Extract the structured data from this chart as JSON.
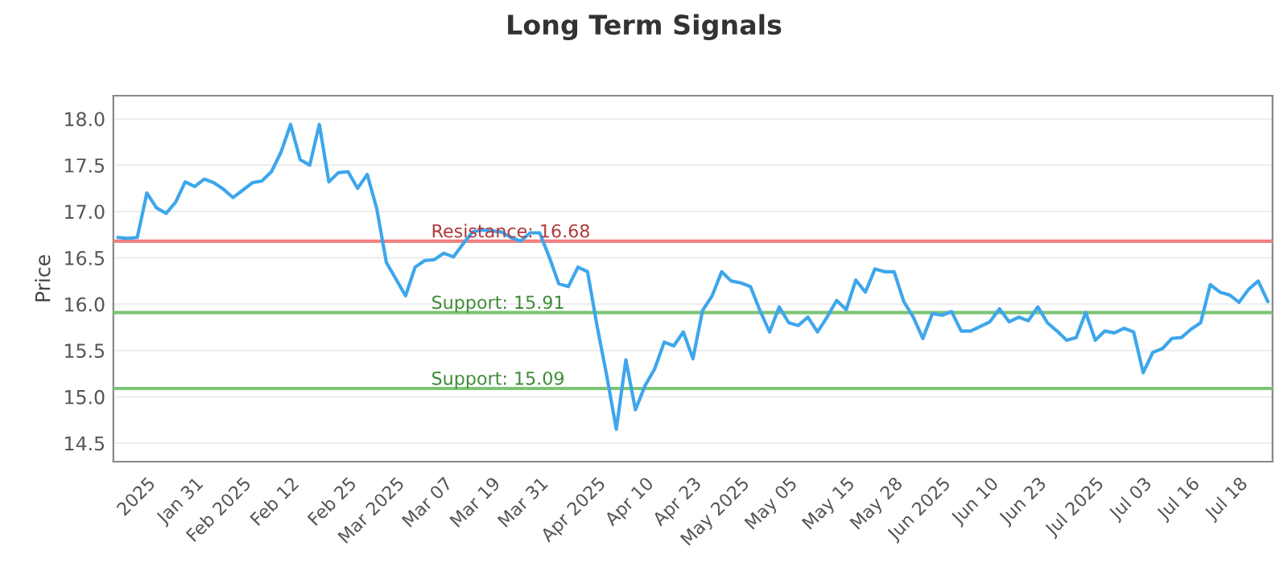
{
  "chart_data": {
    "type": "line",
    "title": "Long Term Signals",
    "ylabel": "Price",
    "categories": [
      null,
      null,
      null,
      "2025",
      null,
      null,
      null,
      null,
      "Jan 31",
      null,
      null,
      null,
      null,
      "Feb 2025",
      null,
      null,
      null,
      null,
      "Feb 12",
      null,
      null,
      null,
      null,
      null,
      "Feb 25",
      null,
      null,
      null,
      null,
      "Mar 2025",
      null,
      null,
      null,
      null,
      "Mar 07",
      null,
      null,
      null,
      null,
      "Mar 19",
      null,
      null,
      null,
      null,
      "Mar 31",
      null,
      null,
      null,
      null,
      null,
      "Apr 2025",
      null,
      null,
      null,
      null,
      "Apr 10",
      null,
      null,
      null,
      null,
      "Apr 23",
      null,
      null,
      null,
      null,
      "May 2025",
      null,
      null,
      null,
      null,
      "May 05",
      null,
      null,
      null,
      null,
      null,
      "May 15",
      null,
      null,
      null,
      null,
      "May 28",
      null,
      null,
      null,
      null,
      "Jun 2025",
      null,
      null,
      null,
      null,
      "Jun 10",
      null,
      null,
      null,
      null,
      "Jun 23",
      null,
      null,
      null,
      null,
      null,
      "Jul 2025",
      null,
      null,
      null,
      null,
      "Jul 03",
      null,
      null,
      null,
      null,
      "Jul 16",
      null,
      null,
      null,
      null,
      "Jul 18",
      null,
      null,
      null
    ],
    "series": [
      {
        "color": "#3ea6ec",
        "values": [
          16.72,
          16.71,
          16.72,
          17.2,
          17.04,
          16.98,
          17.1,
          17.32,
          17.27,
          17.35,
          17.31,
          17.24,
          17.15,
          17.23,
          17.31,
          17.33,
          17.43,
          17.64,
          17.94,
          17.56,
          17.5,
          17.94,
          17.32,
          17.42,
          17.43,
          17.25,
          17.4,
          17.03,
          16.45,
          16.27,
          16.09,
          16.4,
          16.47,
          16.48,
          16.55,
          16.51,
          16.65,
          16.78,
          16.8,
          16.79,
          16.78,
          16.72,
          16.68,
          16.77,
          16.77,
          16.51,
          16.22,
          16.19,
          16.4,
          16.35,
          15.76,
          15.23,
          14.65,
          15.4,
          14.86,
          15.12,
          15.3,
          15.59,
          15.55,
          15.7,
          15.41,
          15.93,
          16.09,
          16.35,
          16.25,
          16.23,
          16.19,
          15.93,
          15.7,
          15.97,
          15.8,
          15.77,
          15.86,
          15.7,
          15.86,
          16.04,
          15.94,
          16.26,
          16.13,
          16.38,
          16.35,
          16.35,
          16.03,
          15.86,
          15.63,
          15.9,
          15.88,
          15.92,
          15.71,
          15.71,
          15.76,
          15.81,
          15.95,
          15.81,
          15.86,
          15.82,
          15.97,
          15.8,
          15.71,
          15.61,
          15.64,
          15.91,
          15.61,
          15.71,
          15.69,
          15.74,
          15.7,
          15.26,
          15.48,
          15.52,
          15.63,
          15.64,
          15.73,
          15.8,
          16.21,
          16.13,
          16.1,
          16.02,
          16.16,
          16.25,
          16.03
        ]
      }
    ],
    "ylim": [
      14.3,
      18.25
    ],
    "yticks": [
      {
        "value": 14.5,
        "label": "14.5"
      },
      {
        "value": 15,
        "label": "15.0"
      },
      {
        "value": 15.5,
        "label": "15.5"
      },
      {
        "value": 16,
        "label": "16.0"
      },
      {
        "value": 16.5,
        "label": "16.5"
      },
      {
        "value": 17,
        "label": "17.0"
      },
      {
        "value": 17.5,
        "label": "17.5"
      },
      {
        "value": 18,
        "label": "18.0"
      }
    ],
    "ref_lines": [
      {
        "axis": "y",
        "value": 16.68,
        "label": "Resistance: 16.68",
        "color": "#f08080"
      },
      {
        "axis": "y",
        "value": 15.91,
        "label": "Support: 15.91",
        "color": "#7cc576"
      },
      {
        "axis": "y",
        "value": 15.09,
        "label": "Support: 15.09",
        "color": "#7cc576"
      }
    ],
    "grid": "y",
    "legend": false,
    "marker": "none",
    "line_style": "solid"
  }
}
